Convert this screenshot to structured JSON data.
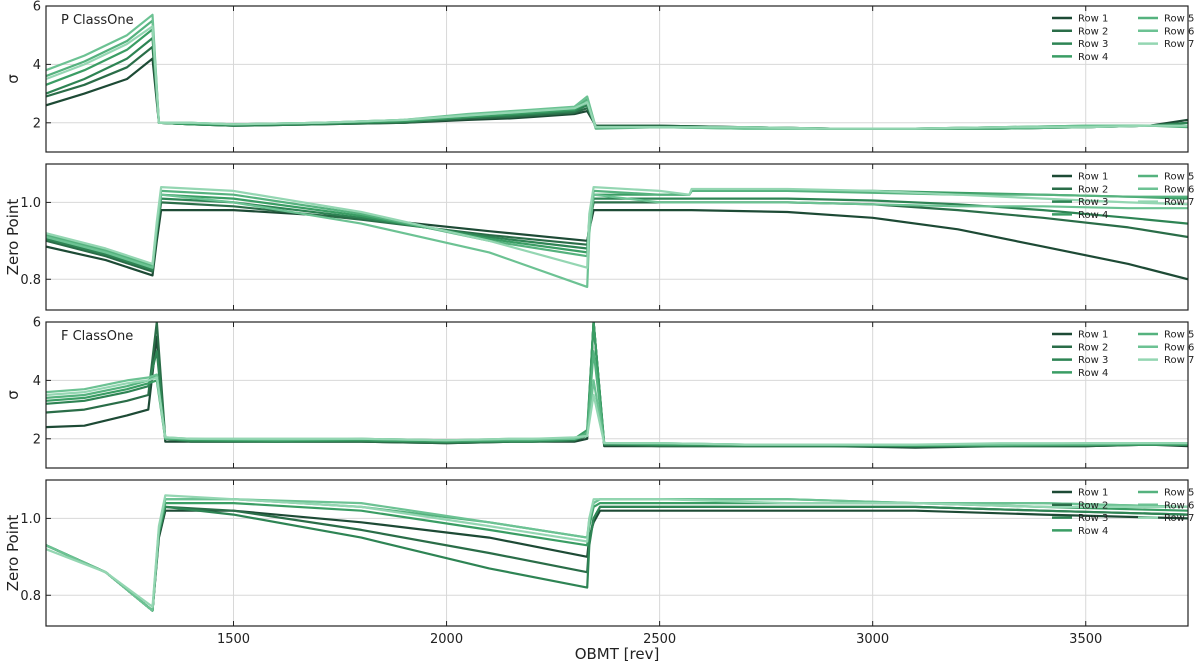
{
  "chart_data": {
    "type": "line",
    "xlabel": "OBMT [rev]",
    "xlim": [
      1060,
      3740
    ],
    "xticks": [
      1500,
      2000,
      2500,
      3000,
      3500
    ],
    "series_names": [
      "Row 1",
      "Row 2",
      "Row 3",
      "Row 4",
      "Row 5",
      "Row 6",
      "Row 7"
    ],
    "colors": [
      "#1d4a35",
      "#2a6d48",
      "#2e8454",
      "#3a9d64",
      "#55b27e",
      "#6cc293",
      "#94d6b2"
    ],
    "legend_position": "upper right",
    "grid": true,
    "panels": [
      {
        "id": "p-sigma",
        "title": "P ClassOne",
        "ylabel": "σ",
        "ylim": [
          1,
          6
        ],
        "yticks": [
          2,
          4,
          6
        ],
        "x": [
          1060,
          1150,
          1250,
          1310,
          1325,
          1400,
          1500,
          1700,
          1900,
          2050,
          2150,
          2200,
          2300,
          2330,
          2350,
          2500,
          2700,
          2900,
          3100,
          3300,
          3500,
          3650,
          3740
        ],
        "series": [
          {
            "name": "Row 1",
            "values": [
              2.6,
              3.0,
              3.5,
              4.2,
              2.0,
              1.95,
              1.9,
              1.95,
              2.0,
              2.1,
              2.15,
              2.2,
              2.3,
              2.4,
              1.9,
              1.9,
              1.85,
              1.8,
              1.8,
              1.8,
              1.85,
              1.9,
              2.1
            ]
          },
          {
            "name": "Row 2",
            "values": [
              2.9,
              3.3,
              3.9,
              4.6,
              2.0,
              1.95,
              1.9,
              1.95,
              2.0,
              2.15,
              2.2,
              2.25,
              2.35,
              2.5,
              1.9,
              1.9,
              1.85,
              1.8,
              1.8,
              1.85,
              1.85,
              1.9,
              2.0
            ]
          },
          {
            "name": "Row 3",
            "values": [
              3.0,
              3.5,
              4.2,
              4.9,
              2.0,
              1.95,
              1.9,
              1.95,
              2.05,
              2.2,
              2.25,
              2.3,
              2.4,
              2.6,
              1.85,
              1.85,
              1.85,
              1.8,
              1.8,
              1.8,
              1.85,
              1.9,
              2.0
            ]
          },
          {
            "name": "Row 4",
            "values": [
              3.3,
              3.8,
              4.5,
              5.2,
              2.0,
              1.95,
              1.95,
              2.0,
              2.05,
              2.2,
              2.3,
              2.35,
              2.45,
              2.7,
              1.85,
              1.85,
              1.85,
              1.8,
              1.8,
              1.85,
              1.9,
              1.9,
              1.9
            ]
          },
          {
            "name": "Row 5",
            "values": [
              3.6,
              4.1,
              4.8,
              5.5,
              2.0,
              2.0,
              1.95,
              2.0,
              2.1,
              2.25,
              2.35,
              2.4,
              2.5,
              2.8,
              1.8,
              1.85,
              1.8,
              1.8,
              1.8,
              1.8,
              1.85,
              1.9,
              1.85
            ]
          },
          {
            "name": "Row 6",
            "values": [
              3.8,
              4.3,
              5.0,
              5.7,
              2.0,
              2.0,
              1.95,
              2.0,
              2.1,
              2.3,
              2.4,
              2.45,
              2.55,
              2.9,
              1.85,
              1.85,
              1.8,
              1.8,
              1.8,
              1.85,
              1.9,
              1.9,
              1.9
            ]
          },
          {
            "name": "Row 7",
            "values": [
              3.5,
              4.0,
              4.7,
              5.3,
              2.0,
              2.0,
              1.95,
              2.0,
              2.1,
              2.25,
              2.35,
              2.4,
              2.5,
              2.7,
              1.85,
              1.85,
              1.85,
              1.8,
              1.8,
              1.85,
              1.85,
              1.9,
              1.9
            ]
          }
        ]
      },
      {
        "id": "p-zp",
        "title": "",
        "ylabel": "Zero Point",
        "ylim": [
          0.72,
          1.1
        ],
        "yticks": [
          0.8,
          1.0
        ],
        "x": [
          1060,
          1200,
          1310,
          1320,
          1330,
          1500,
          1800,
          2100,
          2330,
          2335,
          2345,
          2500,
          2570,
          2575,
          2800,
          3000,
          3200,
          3400,
          3600,
          3740
        ],
        "series": [
          {
            "name": "Row 1",
            "values": [
              0.885,
              0.85,
              0.81,
              0.9,
              0.98,
              0.98,
              0.96,
              0.925,
              0.9,
              0.93,
              0.98,
              0.98,
              0.98,
              0.98,
              0.975,
              0.96,
              0.93,
              0.885,
              0.84,
              0.8
            ]
          },
          {
            "name": "Row 2",
            "values": [
              0.9,
              0.86,
              0.82,
              0.92,
              1.0,
              0.99,
              0.955,
              0.915,
              0.89,
              0.94,
              1.0,
              1.0,
              1.0,
              1.0,
              1.0,
              0.995,
              0.98,
              0.96,
              0.935,
              0.91
            ]
          },
          {
            "name": "Row 3",
            "values": [
              0.905,
              0.865,
              0.825,
              0.93,
              1.01,
              1.0,
              0.96,
              0.91,
              0.88,
              0.95,
              1.01,
              1.01,
              1.01,
              1.01,
              1.01,
              1.005,
              0.995,
              0.98,
              0.96,
              0.945
            ]
          },
          {
            "name": "Row 4",
            "values": [
              0.91,
              0.87,
              0.83,
              0.935,
              1.02,
              1.01,
              0.965,
              0.905,
              0.87,
              0.95,
              1.02,
              1.02,
              1.02,
              1.03,
              1.03,
              1.03,
              1.025,
              1.02,
              1.015,
              1.01
            ]
          },
          {
            "name": "Row 5",
            "values": [
              0.915,
              0.875,
              0.835,
              0.94,
              1.03,
              1.02,
              0.97,
              0.9,
              0.86,
              0.96,
              1.03,
              1.02,
              1.02,
              1.03,
              1.03,
              1.025,
              1.02,
              1.02,
              1.015,
              1.015
            ]
          },
          {
            "name": "Row 6",
            "values": [
              0.91,
              0.87,
              0.83,
              0.93,
              1.02,
              1.0,
              0.945,
              0.87,
              0.78,
              0.92,
              1.02,
              1.0,
              1.0,
              1.0,
              1.0,
              0.995,
              0.99,
              0.99,
              0.985,
              0.985
            ]
          },
          {
            "name": "Row 7",
            "values": [
              0.92,
              0.88,
              0.84,
              0.95,
              1.04,
              1.03,
              0.975,
              0.9,
              0.83,
              0.97,
              1.04,
              1.03,
              1.02,
              1.035,
              1.035,
              1.03,
              1.02,
              1.01,
              1.0,
              0.995
            ]
          }
        ]
      },
      {
        "id": "f-sigma",
        "title": "F ClassOne",
        "ylabel": "σ",
        "ylim": [
          1,
          6
        ],
        "yticks": [
          2,
          4,
          6
        ],
        "x": [
          1060,
          1150,
          1250,
          1300,
          1320,
          1340,
          1400,
          1600,
          1800,
          2000,
          2150,
          2200,
          2300,
          2330,
          2345,
          2370,
          2500,
          2700,
          2900,
          3100,
          3300,
          3500,
          3650,
          3740
        ],
        "series": [
          {
            "name": "Row 1",
            "values": [
              2.4,
              2.45,
              2.8,
              3.0,
              5.5,
              1.9,
              1.9,
              1.9,
              1.9,
              1.85,
              1.9,
              1.9,
              1.9,
              2.0,
              6.0,
              1.75,
              1.75,
              1.75,
              1.75,
              1.7,
              1.75,
              1.75,
              1.8,
              1.75
            ]
          },
          {
            "name": "Row 2",
            "values": [
              2.9,
              3.0,
              3.3,
              3.5,
              6.0,
              2.0,
              1.9,
              1.9,
              1.9,
              1.85,
              1.9,
              1.9,
              1.95,
              2.1,
              6.0,
              1.8,
              1.75,
              1.75,
              1.75,
              1.75,
              1.75,
              1.75,
              1.8,
              1.8
            ]
          },
          {
            "name": "Row 3",
            "values": [
              3.2,
              3.3,
              3.6,
              3.8,
              5.0,
              2.0,
              1.95,
              1.9,
              1.95,
              1.9,
              1.9,
              1.9,
              1.95,
              2.2,
              6.0,
              1.8,
              1.8,
              1.75,
              1.75,
              1.75,
              1.75,
              1.8,
              1.8,
              1.8
            ]
          },
          {
            "name": "Row 4",
            "values": [
              3.3,
              3.4,
              3.7,
              3.9,
              4.0,
              2.0,
              1.95,
              1.95,
              1.95,
              1.9,
              1.95,
              1.95,
              2.0,
              2.3,
              6.0,
              1.85,
              1.8,
              1.8,
              1.8,
              1.75,
              1.8,
              1.8,
              1.8,
              1.8
            ]
          },
          {
            "name": "Row 5",
            "values": [
              3.4,
              3.5,
              3.8,
              4.0,
              4.2,
              2.0,
              2.0,
              1.95,
              2.0,
              1.95,
              1.95,
              1.95,
              2.0,
              2.2,
              5.0,
              1.85,
              1.85,
              1.8,
              1.8,
              1.8,
              1.8,
              1.8,
              1.85,
              1.85
            ]
          },
          {
            "name": "Row 6",
            "values": [
              3.6,
              3.7,
              4.0,
              4.1,
              4.2,
              2.05,
              2.0,
              2.0,
              2.0,
              1.95,
              2.0,
              2.0,
              2.0,
              2.1,
              4.0,
              1.85,
              1.85,
              1.8,
              1.8,
              1.8,
              1.8,
              1.85,
              1.85,
              1.85
            ]
          },
          {
            "name": "Row 7",
            "values": [
              3.5,
              3.6,
              3.9,
              4.0,
              4.1,
              2.05,
              2.0,
              2.0,
              2.0,
              1.95,
              2.0,
              2.0,
              2.05,
              2.1,
              3.5,
              1.85,
              1.85,
              1.8,
              1.8,
              1.8,
              1.85,
              1.85,
              1.85,
              1.85
            ]
          }
        ]
      },
      {
        "id": "f-zp",
        "title": "",
        "ylabel": "Zero Point",
        "ylim": [
          0.72,
          1.1
        ],
        "yticks": [
          0.8,
          1.0
        ],
        "x": [
          1060,
          1200,
          1310,
          1325,
          1340,
          1500,
          1800,
          2100,
          2330,
          2335,
          2345,
          2360,
          2500,
          2800,
          3100,
          3400,
          3740
        ],
        "series": [
          {
            "name": "Row 1",
            "values": [
              0.93,
              0.86,
              0.76,
              0.95,
              1.02,
              1.02,
              0.99,
              0.95,
              0.9,
              0.95,
              0.99,
              1.02,
              1.02,
              1.02,
              1.02,
              1.01,
              1.0
            ]
          },
          {
            "name": "Row 2",
            "values": [
              0.93,
              0.86,
              0.76,
              0.96,
              1.03,
              1.02,
              0.97,
              0.91,
              0.86,
              0.94,
              1.0,
              1.03,
              1.03,
              1.03,
              1.03,
              1.02,
              1.01
            ]
          },
          {
            "name": "Row 3",
            "values": [
              0.93,
              0.86,
              0.76,
              0.96,
              1.03,
              1.01,
              0.95,
              0.87,
              0.82,
              0.93,
              1.0,
              1.03,
              1.03,
              1.03,
              1.03,
              1.02,
              1.01
            ]
          },
          {
            "name": "Row 4",
            "values": [
              0.93,
              0.86,
              0.76,
              0.97,
              1.04,
              1.04,
              1.02,
              0.97,
              0.93,
              0.98,
              1.03,
              1.04,
              1.04,
              1.04,
              1.04,
              1.03,
              1.02
            ]
          },
          {
            "name": "Row 5",
            "values": [
              0.93,
              0.86,
              0.76,
              0.97,
              1.05,
              1.05,
              1.03,
              0.99,
              0.95,
              0.99,
              1.04,
              1.05,
              1.05,
              1.05,
              1.04,
              1.04,
              1.03
            ]
          },
          {
            "name": "Row 6",
            "values": [
              0.93,
              0.86,
              0.76,
              0.97,
              1.05,
              1.05,
              1.04,
              0.99,
              0.95,
              1.0,
              1.04,
              1.05,
              1.05,
              1.05,
              1.04,
              1.04,
              1.03
            ]
          },
          {
            "name": "Row 7",
            "values": [
              0.92,
              0.86,
              0.77,
              0.98,
              1.06,
              1.05,
              1.03,
              0.98,
              0.94,
              1.0,
              1.05,
              1.05,
              1.05,
              1.04,
              1.04,
              1.03,
              1.03
            ]
          }
        ]
      }
    ]
  }
}
